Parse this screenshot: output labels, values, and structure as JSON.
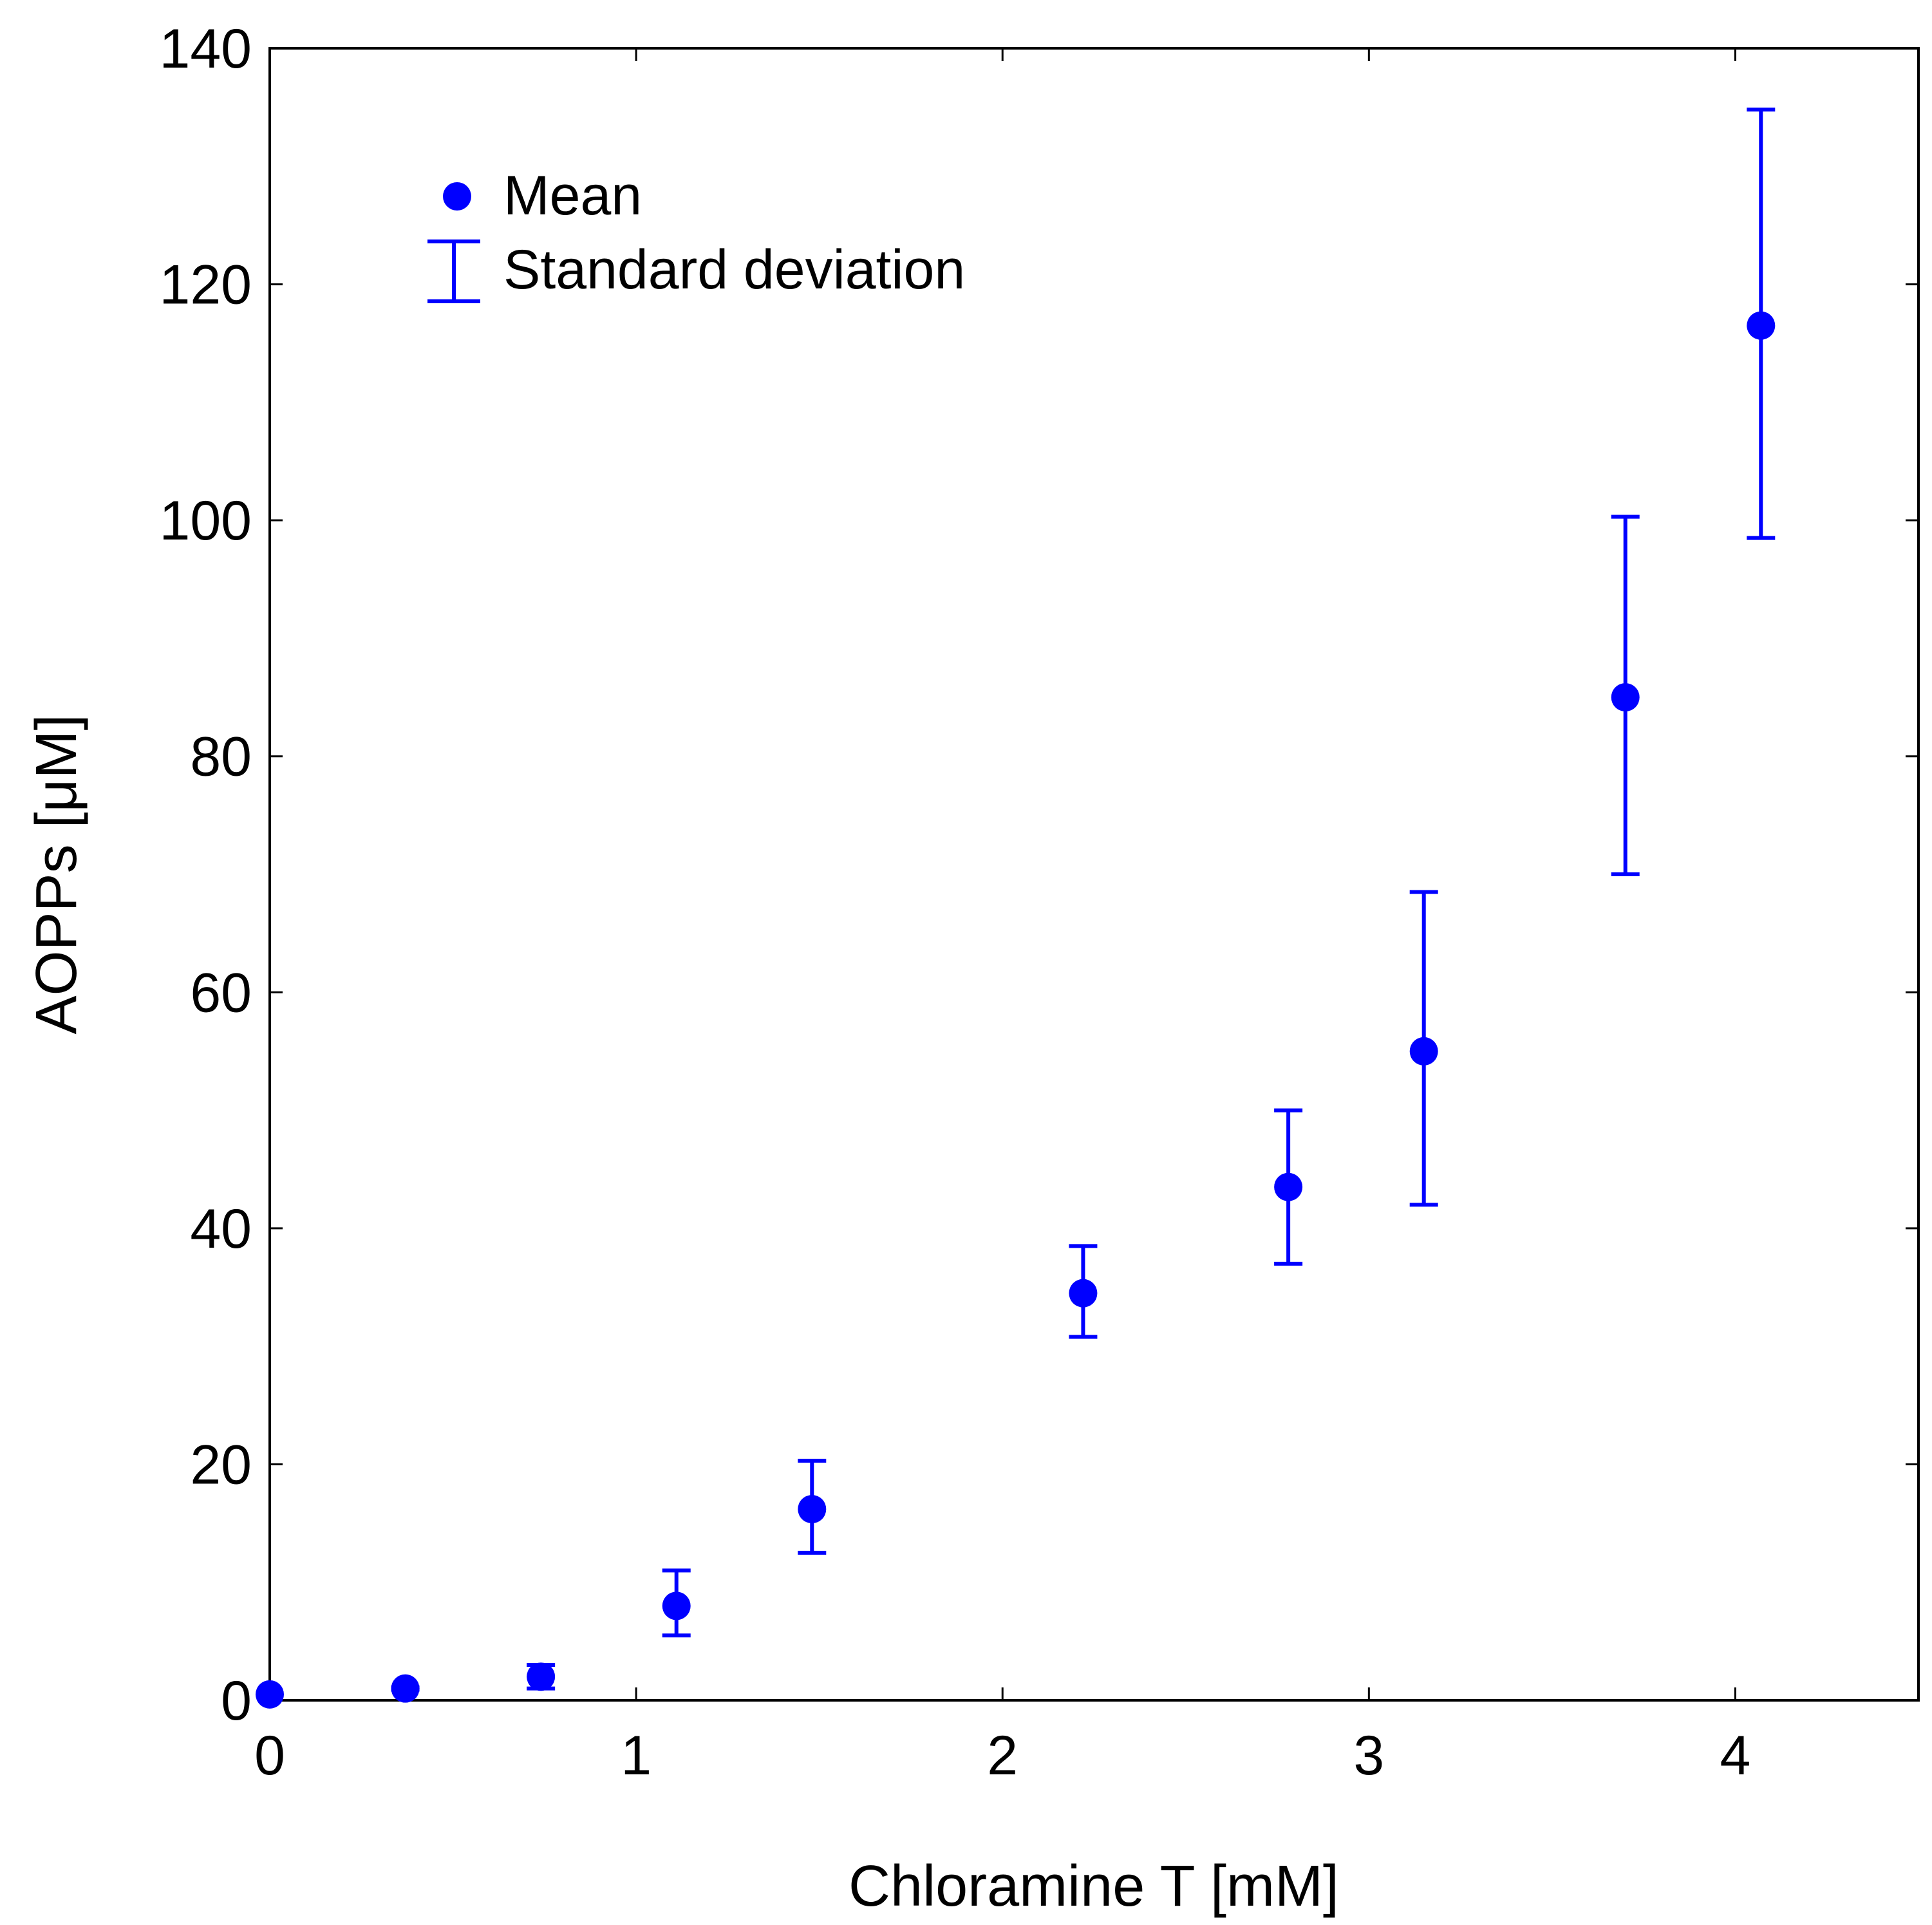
{
  "chart_data": {
    "type": "scatter",
    "title": "",
    "xlabel": "Chloramine T [mM]",
    "ylabel": "AOPPs [μM]",
    "xlim": [
      0,
      4.5
    ],
    "ylim": [
      0,
      140
    ],
    "xticks": [
      0,
      1,
      2,
      3,
      4
    ],
    "yticks": [
      0,
      20,
      40,
      60,
      80,
      100,
      120,
      140
    ],
    "grid": false,
    "legend_position": "top-left",
    "color": "#0000ff",
    "series": [
      {
        "name": "Mean",
        "error_name": "Standard deviation",
        "x": [
          0,
          0.37,
          0.74,
          1.11,
          1.48,
          2.22,
          2.78,
          3.15,
          3.7,
          4.07
        ],
        "y": [
          0.5,
          1,
          2,
          8,
          16.2,
          34.5,
          43.5,
          55,
          85,
          116.5
        ],
        "err_low": [
          0.5,
          0.9,
          1.0,
          5.5,
          12.5,
          30.8,
          37.0,
          42.0,
          70.0,
          98.5
        ],
        "err_high": [
          0.6,
          1.1,
          3.0,
          11.0,
          20.3,
          38.5,
          50.0,
          68.5,
          100.3,
          134.8
        ]
      }
    ]
  }
}
